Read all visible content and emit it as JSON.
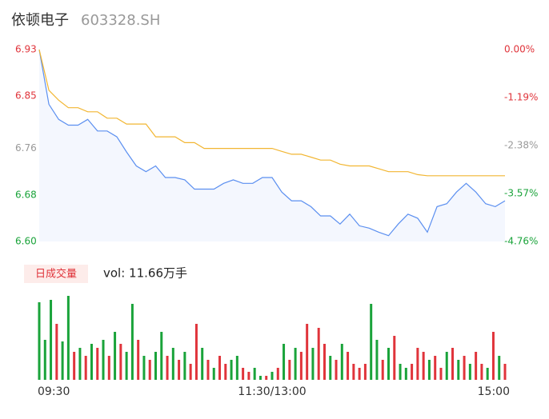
{
  "chart_data": [
    {
      "type": "line",
      "title": "依顿电子",
      "subtitle": "603328.SH",
      "xlim": [
        0,
        240
      ],
      "xticks": [
        {
          "value": 0,
          "label": "09:30"
        },
        {
          "value": 120,
          "label": "11:30/13:00"
        },
        {
          "value": 240,
          "label": "15:00"
        }
      ],
      "ylim": [
        6.6,
        6.93
      ],
      "yticks": [
        {
          "value": 6.6,
          "label": "6.60"
        },
        6.68,
        6.76,
        6.85,
        6.93
      ],
      "ytick_colors": [
        "#1aa33a",
        "#1aa33a",
        "#999999",
        "#e0343b",
        "#e0343b"
      ],
      "y2lim": [
        -4.76,
        0
      ],
      "y2ticks": [
        {
          "value": -4.76,
          "label": "-4.76%"
        },
        {
          "value": -3.57,
          "label": "-3.57%"
        },
        {
          "value": -2.38,
          "label": "-2.38%"
        },
        {
          "value": -1.19,
          "label": "-1.19%"
        },
        {
          "value": 0,
          "label": "0.00%"
        }
      ],
      "y2tick_colors": [
        "#1aa33a",
        "#1aa33a",
        "#999999",
        "#e0343b",
        "#e0343b"
      ],
      "x": [
        0,
        5,
        10,
        15,
        20,
        25,
        30,
        35,
        40,
        45,
        50,
        55,
        60,
        65,
        70,
        75,
        80,
        85,
        90,
        95,
        100,
        105,
        110,
        115,
        120,
        125,
        130,
        135,
        140,
        145,
        150,
        155,
        160,
        165,
        170,
        175,
        180,
        185,
        190,
        195,
        200,
        205,
        210,
        215,
        220,
        225,
        230,
        235,
        240
      ],
      "series": [
        {
          "color": "#5b8ff0",
          "area": true,
          "values": [
            6.93,
            6.836,
            6.81,
            6.8,
            6.8,
            6.81,
            6.79,
            6.79,
            6.78,
            6.754,
            6.73,
            6.72,
            6.73,
            6.71,
            6.71,
            6.706,
            6.69,
            6.69,
            6.69,
            6.7,
            6.706,
            6.7,
            6.7,
            6.71,
            6.71,
            6.685,
            6.67,
            6.67,
            6.66,
            6.644,
            6.644,
            6.63,
            6.647,
            6.627,
            6.623,
            6.616,
            6.61,
            6.63,
            6.647,
            6.64,
            6.616,
            6.66,
            6.665,
            6.685,
            6.7,
            6.685,
            6.665,
            6.66,
            6.67
          ]
        },
        {
          "color": "#f2b632",
          "area": false,
          "values": [
            6.93,
            6.86,
            6.843,
            6.83,
            6.83,
            6.823,
            6.823,
            6.812,
            6.812,
            6.802,
            6.802,
            6.802,
            6.78,
            6.78,
            6.78,
            6.77,
            6.77,
            6.76,
            6.76,
            6.76,
            6.76,
            6.76,
            6.76,
            6.76,
            6.76,
            6.755,
            6.75,
            6.75,
            6.745,
            6.74,
            6.74,
            6.733,
            6.73,
            6.73,
            6.73,
            6.725,
            6.72,
            6.72,
            6.72,
            6.715,
            6.713,
            6.713,
            6.713,
            6.713,
            6.713,
            6.713,
            6.713,
            6.713,
            6.713
          ]
        }
      ]
    },
    {
      "type": "bar",
      "label": "日成交量",
      "vol_label": "vol: 11.66万手",
      "x": [
        0,
        3,
        6,
        9,
        12,
        15,
        18,
        21,
        24,
        27,
        30,
        33,
        36,
        39,
        42,
        45,
        48,
        51,
        54,
        57,
        60,
        63,
        66,
        69,
        72,
        75,
        78,
        81,
        84,
        87,
        90,
        93,
        96,
        99,
        102,
        105,
        108,
        111,
        114,
        117,
        120,
        123,
        126,
        129,
        132,
        135,
        138,
        141,
        144,
        147,
        150,
        153,
        156,
        159,
        162,
        165,
        168,
        171,
        174,
        177,
        180,
        183,
        186,
        189,
        192,
        195,
        198,
        201,
        204,
        207,
        210,
        213,
        216,
        219,
        222,
        225,
        228,
        231,
        234,
        237,
        240
      ],
      "values": [
        97,
        50,
        100,
        70,
        48,
        105,
        35,
        40,
        30,
        45,
        40,
        50,
        30,
        60,
        45,
        35,
        95,
        50,
        30,
        25,
        35,
        60,
        30,
        40,
        25,
        35,
        20,
        70,
        40,
        25,
        15,
        30,
        20,
        25,
        30,
        15,
        10,
        15,
        5,
        5,
        10,
        15,
        45,
        25,
        40,
        35,
        70,
        40,
        65,
        45,
        30,
        25,
        45,
        35,
        20,
        15,
        20,
        95,
        50,
        25,
        40,
        55,
        20,
        15,
        20,
        40,
        35,
        25,
        30,
        15,
        35,
        40,
        25,
        30,
        20,
        35,
        20,
        15,
        60,
        30,
        20
      ],
      "colors": [
        "#1aa33a",
        "#1aa33a",
        "#1aa33a",
        "#e0343b",
        "#1aa33a",
        "#1aa33a",
        "#e0343b",
        "#1aa33a",
        "#e0343b",
        "#1aa33a",
        "#e0343b",
        "#1aa33a",
        "#e0343b",
        "#1aa33a",
        "#e0343b",
        "#1aa33a",
        "#1aa33a",
        "#e0343b",
        "#1aa33a",
        "#e0343b",
        "#1aa33a",
        "#1aa33a",
        "#e0343b",
        "#1aa33a",
        "#e0343b",
        "#1aa33a",
        "#e0343b",
        "#e0343b",
        "#1aa33a",
        "#e0343b",
        "#1aa33a",
        "#e0343b",
        "#e0343b",
        "#1aa33a",
        "#1aa33a",
        "#e0343b",
        "#e0343b",
        "#1aa33a",
        "#1aa33a",
        "#e0343b",
        "#1aa33a",
        "#e0343b",
        "#1aa33a",
        "#e0343b",
        "#1aa33a",
        "#e0343b",
        "#e0343b",
        "#1aa33a",
        "#e0343b",
        "#e0343b",
        "#1aa33a",
        "#e0343b",
        "#1aa33a",
        "#e0343b",
        "#e0343b",
        "#e0343b",
        "#e0343b",
        "#1aa33a",
        "#1aa33a",
        "#e0343b",
        "#1aa33a",
        "#e0343b",
        "#1aa33a",
        "#1aa33a",
        "#e0343b",
        "#e0343b",
        "#e0343b",
        "#1aa33a",
        "#e0343b",
        "#e0343b",
        "#1aa33a",
        "#e0343b",
        "#1aa33a",
        "#e0343b",
        "#1aa33a",
        "#e0343b",
        "#e0343b",
        "#1aa33a",
        "#e0343b",
        "#1aa33a",
        "#e0343b"
      ]
    }
  ]
}
